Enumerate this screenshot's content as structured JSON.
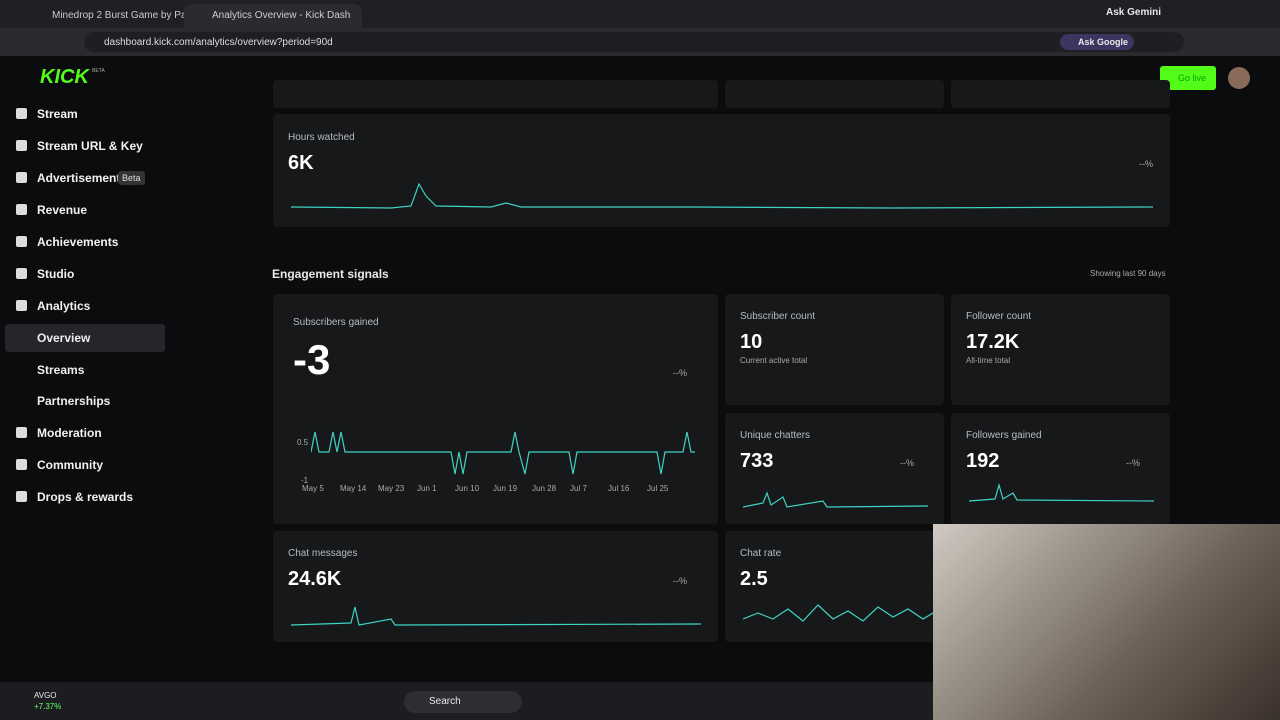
{
  "browser": {
    "tabs": [
      "Minedrop 2 Burst Game by Pa",
      "Analytics Overview - Kick Dash"
    ],
    "ask_gemini": "Ask Gemini",
    "url": "dashboard.kick.com/analytics/overview?period=90d",
    "ask_google": "Ask Google"
  },
  "header": {
    "logo": "KICK",
    "logo_badge": "BETA",
    "go_live": "Go live"
  },
  "sidebar": {
    "items": [
      "Stream",
      "Stream URL & Key",
      "Advertisement",
      "Revenue",
      "Achievements",
      "Studio",
      "Analytics",
      "Overview",
      "Streams",
      "Partnerships",
      "Moderation",
      "Community",
      "Drops & rewards"
    ],
    "beta_badge": "Beta"
  },
  "main": {
    "hours_watched": {
      "label": "Hours watched",
      "value": "6K",
      "change": "--%"
    },
    "section_title": "Engagement signals",
    "section_note": "Showing last 90 days",
    "subscribers_gained": {
      "label": "Subscribers gained",
      "value": "-3",
      "change": "--%",
      "y_labels": [
        "0.5",
        "-1"
      ],
      "x_labels": [
        "May 5",
        "May 14",
        "May 23",
        "Jun 1",
        "Jun 10",
        "Jun 19",
        "Jun 28",
        "Jul 7",
        "Jul 16",
        "Jul 25"
      ]
    },
    "subscriber_count": {
      "label": "Subscriber count",
      "value": "10",
      "note": "Current active total"
    },
    "follower_count": {
      "label": "Follower count",
      "value": "17.2K",
      "note": "All-time total"
    },
    "unique_chatters": {
      "label": "Unique chatters",
      "value": "733",
      "change": "--%"
    },
    "followers_gained": {
      "label": "Followers gained",
      "value": "192",
      "change": "--%"
    },
    "chat_messages": {
      "label": "Chat messages",
      "value": "24.6K",
      "change": "--%"
    },
    "chat_rate": {
      "label": "Chat rate",
      "value": "2.5"
    }
  },
  "taskbar": {
    "stock": "AVGO",
    "stock_change": "+7.37%",
    "search": "Search"
  }
}
